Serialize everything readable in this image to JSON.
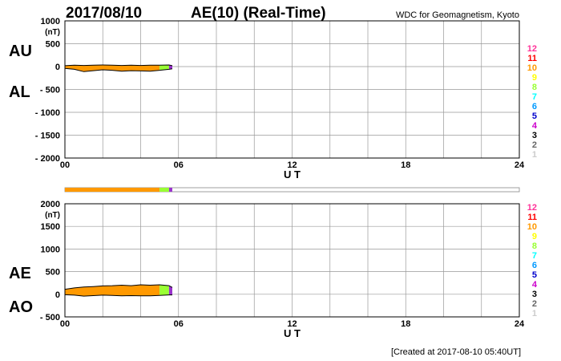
{
  "header": {
    "date": "2017/08/10",
    "title": "AE(10) (Real-Time)",
    "source": "WDC for Geomagnetism, Kyoto"
  },
  "footer": {
    "created": "[Created at 2017-08-10 05:40UT]"
  },
  "colors": {
    "fill_main": "#ff9900",
    "fill_recent": "#99ff33",
    "fill_latest": "#9933cc",
    "grid": "#999999",
    "trace": "#000000"
  },
  "station_scale": [
    {
      "n": "12",
      "color": "#ff3399"
    },
    {
      "n": "11",
      "color": "#ff0000"
    },
    {
      "n": "10",
      "color": "#ff9900"
    },
    {
      "n": "9",
      "color": "#ffff00"
    },
    {
      "n": "8",
      "color": "#99ff33"
    },
    {
      "n": "7",
      "color": "#00ffff"
    },
    {
      "n": "6",
      "color": "#0099ff"
    },
    {
      "n": "5",
      "color": "#0000cc"
    },
    {
      "n": "4",
      "color": "#cc00cc"
    },
    {
      "n": "3",
      "color": "#000000"
    },
    {
      "n": "2",
      "color": "#666666"
    },
    {
      "n": "1",
      "color": "#cccccc"
    }
  ],
  "station_bar": {
    "segments": [
      {
        "x0": 0.0,
        "x1": 5.0,
        "color": "#ff9900"
      },
      {
        "x0": 5.0,
        "x1": 5.5,
        "color": "#99ff33"
      },
      {
        "x0": 5.5,
        "x1": 5.67,
        "color": "#9933cc"
      }
    ]
  },
  "chart_data": [
    {
      "type": "area",
      "panel": "AU/AL",
      "labels": {
        "upper": "AU",
        "lower": "AL",
        "unit": "(nT)"
      },
      "xlabel": "U T",
      "xlim": [
        0,
        24
      ],
      "xticks": [
        "00",
        "06",
        "12",
        "18",
        "24"
      ],
      "ylim": [
        -2000,
        1000
      ],
      "yticks": [
        "1000",
        "500",
        "0",
        "- 500",
        "- 1000",
        "- 1500",
        "- 2000"
      ],
      "grid": true,
      "series": [
        {
          "name": "AU",
          "x": [
            0,
            0.5,
            1,
            1.5,
            2,
            2.5,
            3,
            3.5,
            4,
            4.5,
            5,
            5.5,
            5.67
          ],
          "values": [
            20,
            30,
            25,
            30,
            35,
            30,
            25,
            30,
            25,
            30,
            30,
            35,
            20
          ]
        },
        {
          "name": "AL",
          "x": [
            0,
            0.5,
            1,
            1.5,
            2,
            2.5,
            3,
            3.5,
            4,
            4.5,
            5,
            5.5,
            5.67
          ],
          "values": [
            -40,
            -60,
            -110,
            -90,
            -70,
            -80,
            -100,
            -90,
            -95,
            -100,
            -80,
            -60,
            -50
          ]
        }
      ]
    },
    {
      "type": "area",
      "panel": "AE/AO",
      "labels": {
        "upper": "AE",
        "lower": "AO",
        "unit": "(nT)"
      },
      "xlabel": "U T",
      "xlim": [
        0,
        24
      ],
      "xticks": [
        "00",
        "06",
        "12",
        "18",
        "24"
      ],
      "ylim": [
        -500,
        2000
      ],
      "yticks": [
        "2000",
        "1500",
        "1000",
        "500",
        "0",
        "- 500"
      ],
      "grid": true,
      "series": [
        {
          "name": "AE",
          "x": [
            0,
            0.5,
            1,
            1.5,
            2,
            2.5,
            3,
            3.5,
            4,
            4.5,
            5,
            5.5,
            5.67
          ],
          "values": [
            110,
            140,
            160,
            170,
            185,
            190,
            200,
            190,
            210,
            200,
            210,
            190,
            150
          ]
        },
        {
          "name": "AO",
          "x": [
            0,
            0.5,
            1,
            1.5,
            2,
            2.5,
            3,
            3.5,
            4,
            4.5,
            5,
            5.5,
            5.67
          ],
          "values": [
            -10,
            -20,
            -40,
            -30,
            -20,
            -25,
            -35,
            -30,
            -35,
            -35,
            -25,
            -15,
            -15
          ]
        }
      ]
    }
  ]
}
